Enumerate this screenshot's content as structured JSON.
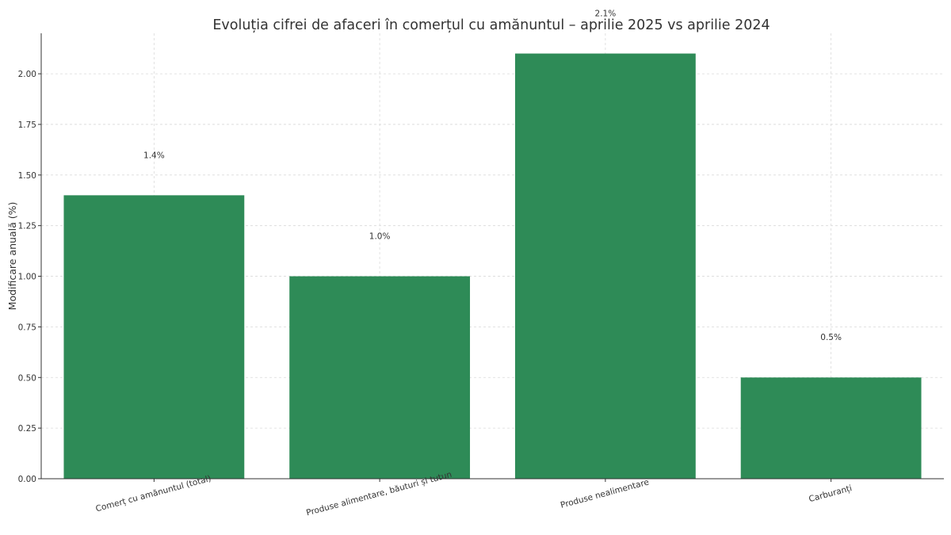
{
  "chart_data": {
    "type": "bar",
    "title": "Evoluția cifrei de afaceri în comerțul cu amănuntul – aprilie 2025 vs aprilie 2024",
    "xlabel": "",
    "ylabel": "Modificare anuală (%)",
    "categories": [
      "Comerț cu amănuntul (total)",
      "Produse alimentare, băuturi și tutun",
      "Produse nealimentare",
      "Carburanți"
    ],
    "values": [
      1.4,
      1.0,
      2.1,
      0.5
    ],
    "data_labels": [
      "1.4%",
      "1.0%",
      "2.1%",
      "0.5%"
    ],
    "ylim": [
      0,
      2.2
    ],
    "yticks": [
      "0.00",
      "0.25",
      "0.50",
      "0.75",
      "1.00",
      "1.25",
      "1.50",
      "1.75",
      "2.00"
    ],
    "grid": true,
    "bar_color": "#2e8b57"
  }
}
